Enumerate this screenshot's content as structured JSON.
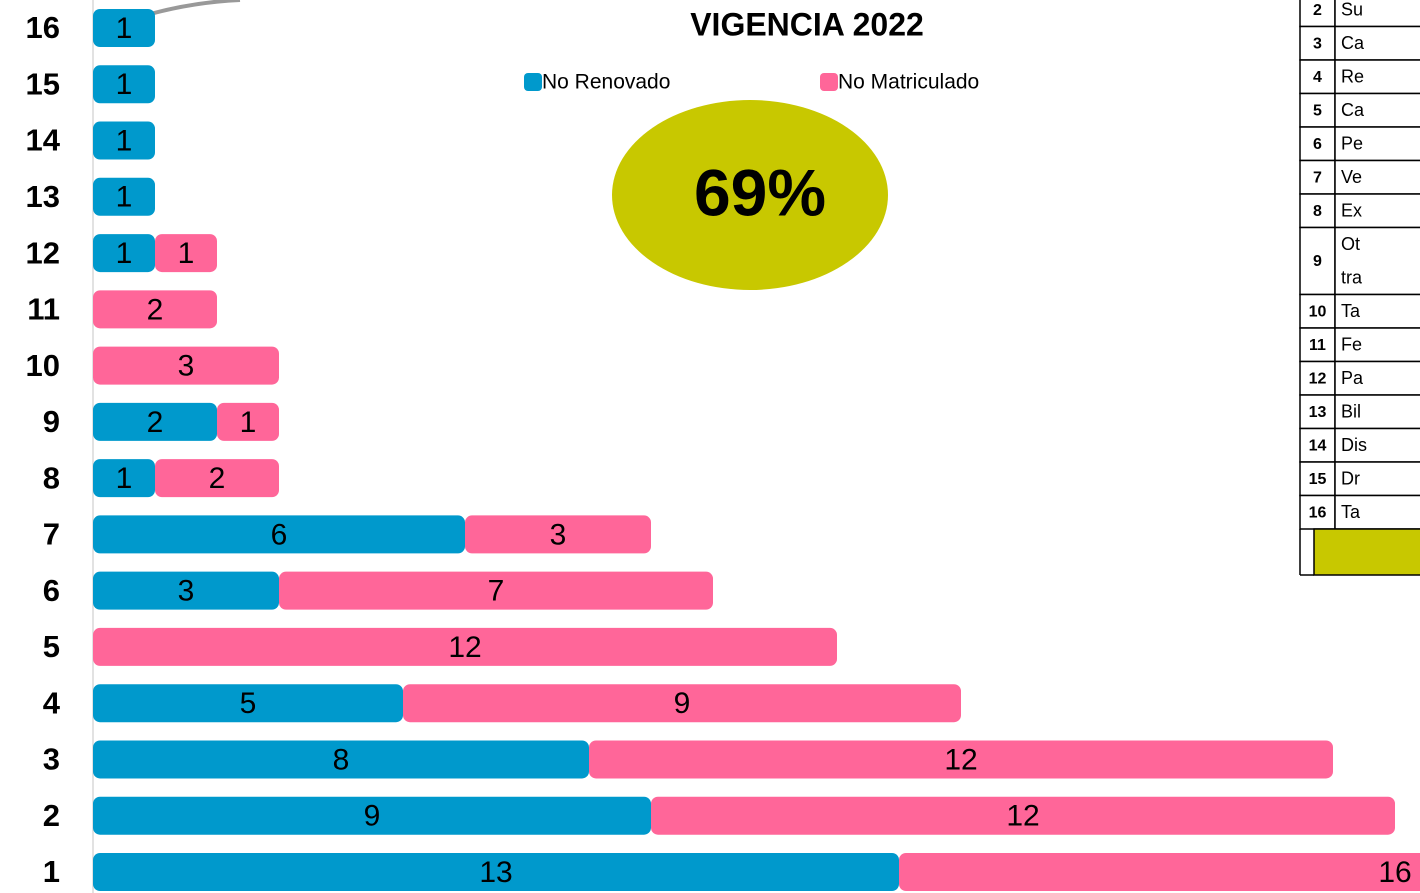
{
  "chart_data": {
    "type": "stacked-barh",
    "title": "VIGENCIA 2022",
    "categories": [
      "1",
      "2",
      "3",
      "4",
      "5",
      "6",
      "7",
      "8",
      "9",
      "10",
      "11",
      "12",
      "13",
      "14",
      "15",
      "16"
    ],
    "series": [
      {
        "name": "No Renovado",
        "color": "#0099cc",
        "values": [
          13,
          9,
          8,
          5,
          null,
          3,
          6,
          1,
          2,
          null,
          null,
          1,
          1,
          1,
          1,
          1
        ]
      },
      {
        "name": "No Matriculado",
        "color": "#ff6699",
        "values": [
          16,
          12,
          12,
          9,
          12,
          7,
          3,
          2,
          1,
          3,
          2,
          1,
          null,
          null,
          null,
          null
        ]
      }
    ],
    "badge": "69%",
    "badge_color": "#c8c800"
  },
  "table": {
    "rows": [
      {
        "num": "2",
        "text": [
          "Su"
        ]
      },
      {
        "num": "3",
        "text": [
          "Ca"
        ]
      },
      {
        "num": "4",
        "text": [
          "Re"
        ]
      },
      {
        "num": "5",
        "text": [
          "Ca"
        ]
      },
      {
        "num": "6",
        "text": [
          "Pe"
        ]
      },
      {
        "num": "7",
        "text": [
          "Ve"
        ]
      },
      {
        "num": "8",
        "text": [
          "Ex"
        ]
      },
      {
        "num": "9",
        "text": [
          "Ot",
          "tra"
        ]
      },
      {
        "num": "10",
        "text": [
          "Ta"
        ]
      },
      {
        "num": "11",
        "text": [
          "Fe"
        ]
      },
      {
        "num": "12",
        "text": [
          "Pa"
        ]
      },
      {
        "num": "13",
        "text": [
          "Bil"
        ]
      },
      {
        "num": "14",
        "text": [
          "Dis"
        ]
      },
      {
        "num": "15",
        "text": [
          "Dr"
        ]
      },
      {
        "num": "16",
        "text": [
          "Ta"
        ]
      }
    ]
  }
}
